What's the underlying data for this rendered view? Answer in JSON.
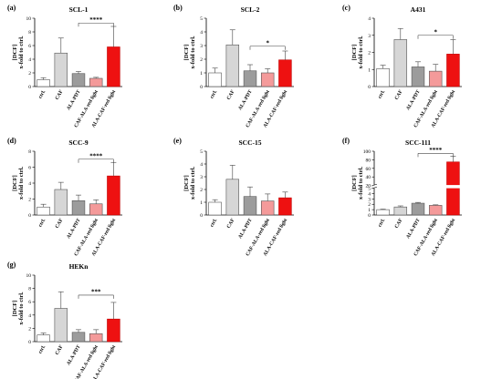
{
  "chart_data": [
    {
      "panel": "(a)",
      "title": "SCL-1",
      "type": "bar",
      "categories": [
        "ctrl.",
        "CAF",
        "ALA-PDT",
        "CAF-ALA-red light",
        "ALA-CAF-red light"
      ],
      "values": [
        1.0,
        4.9,
        1.9,
        1.2,
        5.8
      ],
      "errors": [
        0.3,
        2.2,
        0.3,
        0.15,
        3.0
      ],
      "ylabel_top": "[DCF]",
      "ylabel_bottom": "x-fold to ctrl.",
      "ylim": [
        0,
        10
      ],
      "yticks": [
        0,
        2,
        4,
        6,
        8,
        10
      ],
      "significance": {
        "from": 2,
        "to": 4,
        "label": "****",
        "value": 9.3
      }
    },
    {
      "panel": "(b)",
      "title": "SCL-2",
      "type": "bar",
      "categories": [
        "ctrl.",
        "CAF",
        "ALA-PDT",
        "CAF-ALA-red light",
        "ALA-CAF-red light"
      ],
      "values": [
        1.0,
        3.05,
        1.15,
        1.0,
        1.95
      ],
      "errors": [
        0.35,
        1.1,
        0.45,
        0.3,
        0.65
      ],
      "ylabel_top": "[DCF]",
      "ylabel_bottom": "x-fold to ctrl.",
      "ylim": [
        0,
        5
      ],
      "yticks": [
        0,
        1,
        2,
        3,
        4,
        5
      ],
      "significance": {
        "from": 2,
        "to": 4,
        "label": "*",
        "value": 2.95
      }
    },
    {
      "panel": "(c)",
      "title": "A431",
      "type": "bar",
      "categories": [
        "ctrl.",
        "CAF",
        "ALA-PDT",
        "CAF-ALA-red light",
        "ALA-CAF-red light"
      ],
      "values": [
        1.05,
        2.75,
        1.15,
        0.9,
        1.9
      ],
      "errors": [
        0.2,
        0.65,
        0.3,
        0.4,
        0.85
      ],
      "ylabel_top": "[DCF]",
      "ylabel_bottom": "x-fold to ctrl.",
      "ylim": [
        0,
        4
      ],
      "yticks": [
        0,
        1,
        2,
        3,
        4
      ],
      "significance": {
        "from": 2,
        "to": 4,
        "label": "*",
        "value": 3.0
      }
    },
    {
      "panel": "(d)",
      "title": "SCC-9",
      "type": "bar",
      "categories": [
        "ctrl.",
        "CAF",
        "ALA-PDT",
        "CAF-ALA-red light",
        "ALA-CAF-red light"
      ],
      "values": [
        1.0,
        3.2,
        1.8,
        1.4,
        4.9
      ],
      "errors": [
        0.35,
        0.9,
        0.7,
        0.5,
        1.7
      ],
      "ylabel_top": "[DCF]",
      "ylabel_bottom": "x-fold to ctrl.",
      "ylim": [
        0,
        8
      ],
      "yticks": [
        0,
        2,
        4,
        6,
        8
      ],
      "significance": {
        "from": 2,
        "to": 4,
        "label": "****",
        "value": 7.0
      }
    },
    {
      "panel": "(e)",
      "title": "SCC-15",
      "type": "bar",
      "categories": [
        "ctrl.",
        "CAF",
        "ALA-PDT",
        "CAF-ALA-red light",
        "ALA-CAF-red light"
      ],
      "values": [
        1.0,
        2.8,
        1.45,
        1.1,
        1.35
      ],
      "errors": [
        0.2,
        1.1,
        0.75,
        0.55,
        0.45
      ],
      "ylabel_top": "[DCF]",
      "ylabel_bottom": "x-fold to ctrl.",
      "ylim": [
        0,
        5
      ],
      "yticks": [
        0,
        1,
        2,
        3,
        4,
        5
      ]
    },
    {
      "panel": "(f)",
      "title": "SCC-111",
      "type": "bar",
      "categories": [
        "ctrl.",
        "CAF",
        "ALA-PDT",
        "CAF-ALA-red light",
        "ALA-CAF-red light"
      ],
      "values": [
        1.0,
        1.5,
        2.2,
        1.8,
        75
      ],
      "errors": [
        0.1,
        0.2,
        0.15,
        0.1,
        13
      ],
      "ylabel_top": "[DCF]",
      "ylabel_bottom": "x-fold to ctrl.",
      "ylim": [
        0,
        100
      ],
      "broken_axis": [
        5,
        20
      ],
      "yticks": [
        0,
        1,
        2,
        3,
        4,
        5,
        20,
        40,
        60,
        80,
        100
      ],
      "significance": {
        "from": 2,
        "to": 4,
        "label": "****",
        "value": 95
      }
    },
    {
      "panel": "(g)",
      "title": "HEKn",
      "type": "bar",
      "categories": [
        "ctrl.",
        "CAF",
        "ALA-PDT",
        "CAF-ALA-red light",
        "ALA-CAF-red light"
      ],
      "values": [
        1.0,
        5.0,
        1.4,
        1.2,
        3.4
      ],
      "errors": [
        0.3,
        2.5,
        0.4,
        0.6,
        2.5
      ],
      "ylabel_top": "[DCF]",
      "ylabel_bottom": "x-fold to ctrl.",
      "ylim": [
        0,
        10
      ],
      "yticks": [
        0,
        2,
        4,
        6,
        8,
        10
      ],
      "significance": {
        "from": 2,
        "to": 4,
        "label": "***",
        "value": 7.0
      }
    }
  ],
  "colors": {
    "ctrl.": "#ffffff",
    "CAF": "#d6d6d6",
    "ALA-PDT": "#9c9c9c",
    "CAF-ALA-red light": "#f49a9a",
    "ALA-CAF-red light": "#ee1111"
  }
}
